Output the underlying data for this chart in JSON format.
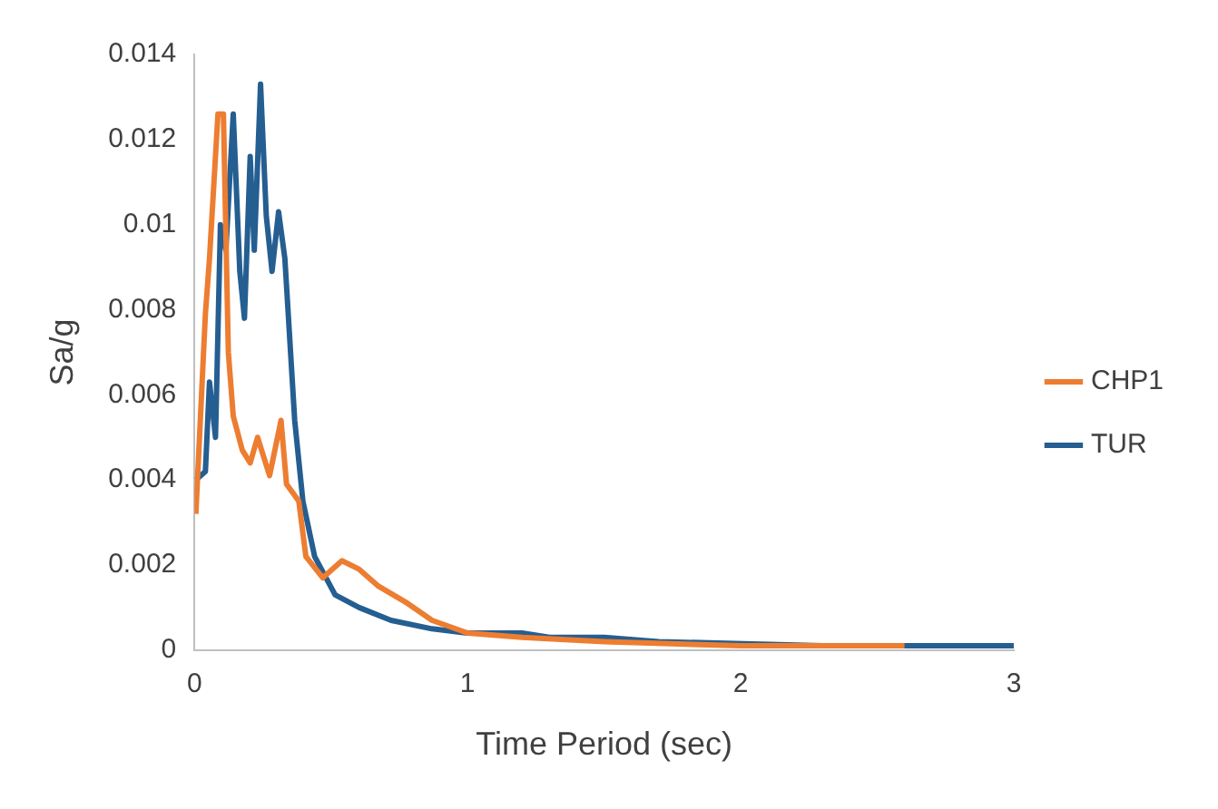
{
  "chart_data": {
    "type": "line",
    "xlabel": "Time Period (sec)",
    "ylabel": "Sa/g",
    "xlim": [
      0,
      3
    ],
    "xticks": [
      0,
      1,
      2,
      3
    ],
    "ylim": [
      0,
      0.014
    ],
    "yticks": [
      0,
      0.002,
      0.004,
      0.006,
      0.008,
      0.01,
      0.012,
      0.014
    ],
    "legend": "right",
    "grid": false,
    "marker": "none",
    "series": [
      {
        "name": "CHP1",
        "color": "#ed7d31",
        "x": [
          0.005,
          0.04,
          0.055,
          0.086,
          0.106,
          0.124,
          0.142,
          0.175,
          0.204,
          0.231,
          0.275,
          0.317,
          0.337,
          0.382,
          0.408,
          0.47,
          0.54,
          0.603,
          0.674,
          0.78,
          0.87,
          1.0,
          1.2,
          1.5,
          2.0,
          2.6
        ],
        "values": [
          0.0032,
          0.0079,
          0.0092,
          0.0126,
          0.0126,
          0.007,
          0.0055,
          0.0047,
          0.0044,
          0.005,
          0.0041,
          0.0054,
          0.0039,
          0.0035,
          0.0022,
          0.0017,
          0.0021,
          0.0019,
          0.0015,
          0.0011,
          0.0007,
          0.0004,
          0.0003,
          0.0002,
          0.0001,
          0.0001
        ]
      },
      {
        "name": "TUR",
        "color": "#255e91",
        "x": [
          0.006,
          0.04,
          0.055,
          0.077,
          0.095,
          0.115,
          0.142,
          0.166,
          0.183,
          0.204,
          0.219,
          0.242,
          0.263,
          0.284,
          0.308,
          0.331,
          0.367,
          0.397,
          0.44,
          0.515,
          0.603,
          0.72,
          0.87,
          1.0,
          1.2,
          1.3,
          1.5,
          1.7,
          2.3,
          3.0
        ],
        "values": [
          0.004,
          0.0042,
          0.0063,
          0.005,
          0.01,
          0.0094,
          0.0126,
          0.0089,
          0.0078,
          0.0116,
          0.0094,
          0.0133,
          0.0102,
          0.0089,
          0.0103,
          0.0092,
          0.0054,
          0.0035,
          0.0022,
          0.0013,
          0.001,
          0.0007,
          0.0005,
          0.0004,
          0.0004,
          0.0003,
          0.0003,
          0.0002,
          0.0001,
          0.0001
        ]
      }
    ]
  }
}
